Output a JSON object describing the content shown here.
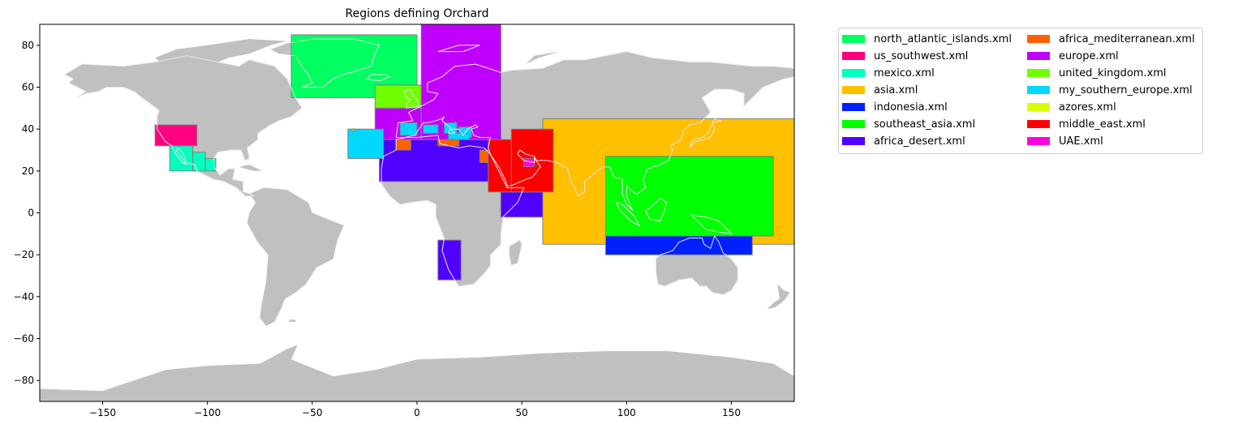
{
  "chart_data": {
    "type": "map",
    "title": "Regions defining Orchard",
    "xlim": [
      -180,
      180
    ],
    "ylim": [
      -90,
      90
    ],
    "xticks": [
      -150,
      -100,
      -50,
      0,
      50,
      100,
      150
    ],
    "yticks": [
      -80,
      -60,
      -40,
      -20,
      0,
      20,
      40,
      60,
      80
    ],
    "land_color": "#c0c0c0",
    "coast_color": "#e6e6e6",
    "region_edge_color": "#808080",
    "legend_placement": "outside-right-top",
    "legend_columns": 2,
    "regions": [
      {
        "name": "north_atlantic_islands.xml",
        "color": "#00ff60",
        "boxes": [
          [
            -60,
            0,
            55,
            85
          ]
        ]
      },
      {
        "name": "us_southwest.xml",
        "color": "#ff0080",
        "boxes": [
          [
            -125,
            -105,
            32,
            42
          ]
        ]
      },
      {
        "name": "mexico.xml",
        "color": "#00ffc0",
        "boxes": [
          [
            -118,
            -107,
            20,
            32
          ],
          [
            -107,
            -101,
            20,
            29
          ],
          [
            -101,
            -96,
            20,
            26
          ]
        ]
      },
      {
        "name": "asia.xml",
        "color": "#ffc000",
        "boxes": [
          [
            60,
            180,
            -15,
            45
          ]
        ]
      },
      {
        "name": "indonesia.xml",
        "color": "#0020ff",
        "boxes": [
          [
            90,
            160,
            -20,
            -11
          ]
        ]
      },
      {
        "name": "southeast_asia.xml",
        "color": "#00ff00",
        "boxes": [
          [
            90,
            170,
            -11,
            27
          ]
        ]
      },
      {
        "name": "africa_desert.xml",
        "color": "#5000ff",
        "boxes": [
          [
            -18,
            42,
            15,
            35
          ],
          [
            40,
            60,
            -2,
            10
          ],
          [
            10,
            21,
            -32,
            -13
          ]
        ]
      },
      {
        "name": "africa_mediterranean.xml",
        "color": "#ff6000",
        "boxes": [
          [
            -10,
            -3,
            30,
            35
          ],
          [
            10,
            20,
            32,
            35
          ],
          [
            30,
            34,
            24,
            30
          ]
        ]
      },
      {
        "name": "europe.xml",
        "color": "#c000ff",
        "boxes": [
          [
            2,
            40,
            35,
            90
          ],
          [
            -20,
            2,
            35,
            50
          ]
        ]
      },
      {
        "name": "united_kingdom.xml",
        "color": "#70ff00",
        "boxes": [
          [
            -20,
            2,
            50,
            61
          ]
        ]
      },
      {
        "name": "my_southern_europe.xml",
        "color": "#00d8ff",
        "boxes": [
          [
            -33,
            -16,
            26,
            40
          ],
          [
            -8,
            0,
            37,
            43
          ],
          [
            3,
            10,
            38,
            42
          ],
          [
            13,
            19,
            38,
            43
          ],
          [
            20,
            26,
            36,
            41
          ],
          [
            15,
            25,
            35,
            38
          ]
        ]
      },
      {
        "name": "azores.xml",
        "color": "#d8ff00",
        "boxes": [
          [
            -31,
            -30,
            39,
            40
          ]
        ]
      },
      {
        "name": "middle_east.xml",
        "color": "#ff0000",
        "boxes": [
          [
            34,
            46,
            10,
            35
          ],
          [
            45,
            65,
            10,
            40
          ]
        ]
      },
      {
        "name": "UAE.xml",
        "color": "#ff00e0",
        "boxes": [
          [
            51,
            56,
            22,
            26
          ]
        ]
      }
    ]
  }
}
